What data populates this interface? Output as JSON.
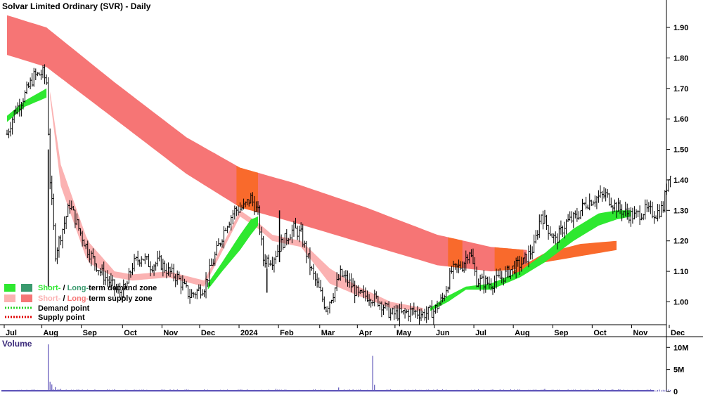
{
  "chart_data": {
    "type": "line",
    "title": "Solvar Limited Ordinary (SVR) - Daily",
    "price_axis": {
      "ticks": [
        "1.90",
        "1.80",
        "1.70",
        "1.60",
        "1.50",
        "1.40",
        "1.30",
        "1.20",
        "1.10",
        "1.00"
      ],
      "tick_values": [
        1.9,
        1.8,
        1.7,
        1.6,
        1.5,
        1.4,
        1.3,
        1.2,
        1.1,
        1.0
      ],
      "ylim": [
        0.925,
        1.99
      ]
    },
    "x_labels": [
      "Jul",
      "Aug",
      "Sep",
      "Oct",
      "Nov",
      "Dec",
      "2024",
      "Feb",
      "Mar",
      "Apr",
      "May",
      "Jun",
      "Jul",
      "Aug",
      "Sep",
      "Oct",
      "Nov",
      "Dec"
    ],
    "x_label_index": [
      0,
      21,
      43,
      66,
      88,
      109,
      131,
      153,
      176,
      197,
      218,
      240,
      262,
      284,
      306,
      328,
      350,
      371
    ],
    "n_bars": 371,
    "close_keypoints": [
      [
        0,
        1.55
      ],
      [
        4,
        1.62
      ],
      [
        10,
        1.68
      ],
      [
        15,
        1.74
      ],
      [
        20,
        1.75
      ],
      [
        22,
        1.72
      ],
      [
        24,
        1.4
      ],
      [
        27,
        1.16
      ],
      [
        30,
        1.22
      ],
      [
        35,
        1.32
      ],
      [
        40,
        1.24
      ],
      [
        45,
        1.17
      ],
      [
        52,
        1.1
      ],
      [
        58,
        1.06
      ],
      [
        62,
        1.03
      ],
      [
        66,
        1.04
      ],
      [
        70,
        1.12
      ],
      [
        75,
        1.15
      ],
      [
        80,
        1.12
      ],
      [
        85,
        1.13
      ],
      [
        90,
        1.1
      ],
      [
        95,
        1.08
      ],
      [
        102,
        1.02
      ],
      [
        110,
        1.05
      ],
      [
        116,
        1.15
      ],
      [
        122,
        1.25
      ],
      [
        127,
        1.3
      ],
      [
        132,
        1.31
      ],
      [
        136,
        1.34
      ],
      [
        140,
        1.29
      ],
      [
        143,
        1.14
      ],
      [
        148,
        1.14
      ],
      [
        153,
        1.19
      ],
      [
        160,
        1.24
      ],
      [
        164,
        1.22
      ],
      [
        166,
        1.18
      ],
      [
        170,
        1.1
      ],
      [
        174,
        1.04
      ],
      [
        178,
        0.98
      ],
      [
        182,
        1.03
      ],
      [
        186,
        1.09
      ],
      [
        190,
        1.07
      ],
      [
        196,
        1.02
      ],
      [
        202,
        1.02
      ],
      [
        208,
        1.0
      ],
      [
        214,
        0.96
      ],
      [
        220,
        0.96
      ],
      [
        226,
        0.97
      ],
      [
        232,
        0.96
      ],
      [
        238,
        0.97
      ],
      [
        243,
        1.01
      ],
      [
        248,
        1.1
      ],
      [
        254,
        1.12
      ],
      [
        258,
        1.17
      ],
      [
        262,
        1.07
      ],
      [
        270,
        1.06
      ],
      [
        276,
        1.08
      ],
      [
        282,
        1.11
      ],
      [
        288,
        1.13
      ],
      [
        294,
        1.18
      ],
      [
        298,
        1.29
      ],
      [
        302,
        1.24
      ],
      [
        306,
        1.2
      ],
      [
        312,
        1.26
      ],
      [
        318,
        1.28
      ],
      [
        322,
        1.32
      ],
      [
        328,
        1.34
      ],
      [
        334,
        1.35
      ],
      [
        340,
        1.31
      ],
      [
        346,
        1.29
      ],
      [
        350,
        1.28
      ],
      [
        356,
        1.3
      ],
      [
        362,
        1.29
      ],
      [
        366,
        1.31
      ],
      [
        368,
        1.38
      ],
      [
        370,
        1.43
      ]
    ],
    "long_term_supply_zone": {
      "upper": [
        [
          0,
          1.94
        ],
        [
          22,
          1.9
        ],
        [
          60,
          1.72
        ],
        [
          100,
          1.54
        ],
        [
          130,
          1.44
        ],
        [
          160,
          1.39
        ],
        [
          200,
          1.31
        ],
        [
          240,
          1.22
        ],
        [
          270,
          1.18
        ],
        [
          290,
          1.17
        ]
      ],
      "lower": [
        [
          0,
          1.81
        ],
        [
          22,
          1.77
        ],
        [
          60,
          1.6
        ],
        [
          100,
          1.42
        ],
        [
          130,
          1.31
        ],
        [
          160,
          1.26
        ],
        [
          200,
          1.19
        ],
        [
          240,
          1.12
        ],
        [
          270,
          1.1
        ],
        [
          290,
          1.11
        ]
      ]
    },
    "short_term_supply_zone": [
      [
        24,
        1.69,
        1.67
      ],
      [
        30,
        1.45,
        1.38
      ],
      [
        45,
        1.2,
        1.13
      ],
      [
        60,
        1.1,
        1.08
      ],
      [
        70,
        1.09,
        1.07
      ],
      [
        90,
        1.1,
        1.08
      ],
      [
        110,
        1.07,
        1.05
      ],
      [
        130,
        1.3,
        1.28
      ],
      [
        140,
        1.26,
        1.24
      ],
      [
        148,
        1.22,
        1.2
      ],
      [
        164,
        1.2,
        1.18
      ],
      [
        180,
        1.11,
        1.06
      ],
      [
        196,
        1.05,
        1.02
      ],
      [
        214,
        1.0,
        0.98
      ],
      [
        232,
        0.98,
        0.97
      ]
    ],
    "short_term_demand_zone": [
      [
        0,
        1.61,
        1.59
      ],
      [
        10,
        1.66,
        1.64
      ],
      [
        22,
        1.7,
        1.67
      ],
      [
        112,
        1.06,
        1.04
      ],
      [
        120,
        1.13,
        1.1
      ],
      [
        130,
        1.22,
        1.17
      ],
      [
        136,
        1.27,
        1.22
      ],
      [
        140,
        1.28,
        1.25
      ],
      [
        236,
        0.98,
        0.97
      ],
      [
        246,
        1.02,
        1.0
      ],
      [
        256,
        1.05,
        1.04
      ],
      [
        270,
        1.06,
        1.04
      ],
      [
        286,
        1.1,
        1.08
      ],
      [
        300,
        1.16,
        1.13
      ],
      [
        316,
        1.24,
        1.2
      ],
      [
        330,
        1.29,
        1.25
      ],
      [
        340,
        1.3,
        1.27
      ],
      [
        348,
        1.3,
        1.28
      ],
      [
        370,
        1.32,
        1.3
      ]
    ],
    "long_term_demand_zone": [
      [
        282,
        1.1,
        1.09
      ],
      [
        300,
        1.16,
        1.13
      ],
      [
        320,
        1.19,
        1.15
      ],
      [
        340,
        1.2,
        1.17
      ],
      [
        371,
        1.22,
        1.21
      ]
    ],
    "volume_axis": {
      "ticks": [
        "10M",
        "5M",
        "0"
      ],
      "tick_values": [
        10,
        5,
        0
      ],
      "ymax": 11
    },
    "volume_spikes": [
      [
        23,
        10.7
      ],
      [
        24,
        2.2
      ],
      [
        25,
        1.6
      ],
      [
        27,
        1.0
      ],
      [
        30,
        0.6
      ],
      [
        60,
        0.5
      ],
      [
        75,
        0.4
      ],
      [
        100,
        0.5
      ],
      [
        150,
        0.6
      ],
      [
        185,
        0.9
      ],
      [
        204,
        8.1
      ],
      [
        205,
        1.5
      ],
      [
        240,
        0.5
      ],
      [
        300,
        0.6
      ],
      [
        330,
        0.5
      ]
    ],
    "volume_label": "Volume",
    "legend": [
      {
        "text_a": "Short-",
        "sep": " / ",
        "text_b": "Long-",
        "rest": "term demand zone",
        "type": "demand",
        "color_a": "#2ee830",
        "color_b": "#3a9a6e"
      },
      {
        "text_a": "Short-",
        "sep": " / ",
        "text_b": "Long-",
        "rest": "term supply zone",
        "type": "supply",
        "color_a": "#fbb2b2",
        "color_b": "#f67575"
      },
      {
        "text_a": "Demand point",
        "type": "demand_point",
        "color": "#27d427"
      },
      {
        "text_a": "Supply point",
        "type": "supply_point",
        "color": "#e00000"
      }
    ],
    "colors": {
      "long_supply": "#f67575",
      "short_supply": "#fbb2b2",
      "overlap": "#f96a2c",
      "short_demand": "#2ee830",
      "long_demand": "#f96a2c",
      "price": "#000000",
      "volume": "#5c52b8"
    }
  }
}
